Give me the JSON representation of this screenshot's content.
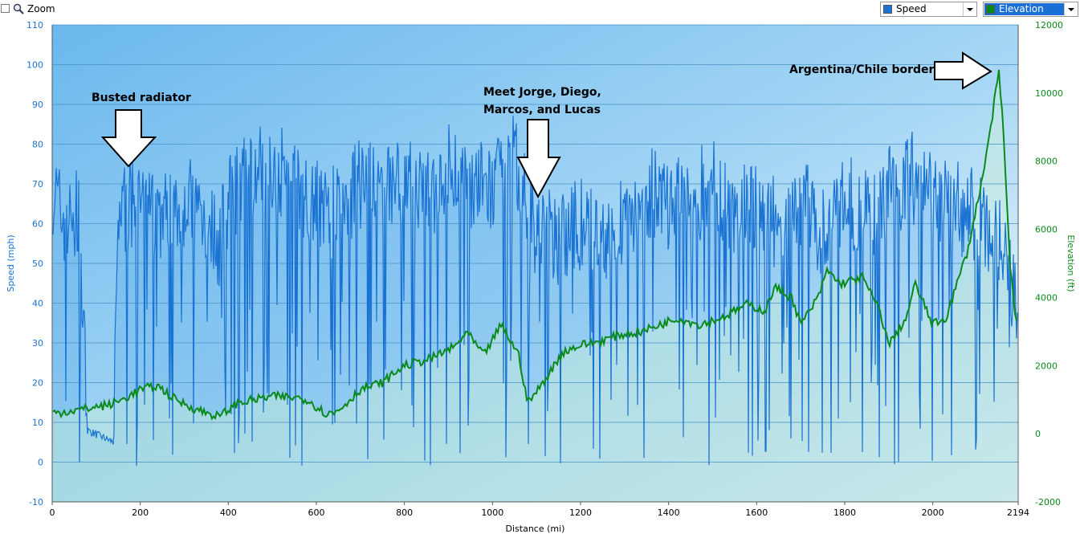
{
  "toolbar": {
    "zoom_label": "Zoom",
    "speed_select": {
      "label": "Speed",
      "color": "#1a72d2"
    },
    "elevation_select": {
      "label": "Elevation",
      "color": "#0a8a1a",
      "highlight": "#1a6fd6"
    }
  },
  "chart_data": {
    "type": "line",
    "xlabel": "Distance  (mi)",
    "x_ticks": [
      "0",
      "200",
      "400",
      "600",
      "800",
      "1000",
      "1200",
      "1400",
      "1600",
      "1800",
      "2000",
      "2194"
    ],
    "x_range": [
      0,
      2194
    ],
    "y_left": {
      "label": "Speed (mph)",
      "range": [
        -10,
        110
      ],
      "ticks": [
        "110",
        "100",
        "90",
        "80",
        "70",
        "60",
        "50",
        "40",
        "30",
        "20",
        "10",
        "0",
        "-10"
      ],
      "color": "#1a72d2"
    },
    "y_right": {
      "label": "Elevation (ft)",
      "range": [
        -2000,
        12000
      ],
      "ticks": [
        "12000",
        "10000",
        "8000",
        "6000",
        "4000",
        "2000",
        "0",
        "-2000"
      ],
      "color": "#0a8a1a"
    },
    "grid": true,
    "series": [
      {
        "name": "Speed",
        "axis": "left",
        "x": [
          0,
          20,
          40,
          60,
          80,
          100,
          140,
          150,
          200,
          250,
          300,
          350,
          380,
          400,
          450,
          500,
          550,
          600,
          650,
          700,
          750,
          800,
          850,
          900,
          950,
          1000,
          1050,
          1100,
          1150,
          1200,
          1250,
          1300,
          1350,
          1400,
          1450,
          1500,
          1550,
          1600,
          1650,
          1700,
          1750,
          1800,
          1850,
          1900,
          1950,
          2000,
          2050,
          2100,
          2150,
          2194
        ],
        "values": [
          70,
          62,
          60,
          62,
          8,
          7,
          5,
          64,
          65,
          62,
          66,
          62,
          55,
          65,
          72,
          75,
          70,
          66,
          62,
          70,
          68,
          72,
          66,
          74,
          70,
          68,
          76,
          58,
          56,
          60,
          56,
          62,
          68,
          64,
          66,
          70,
          63,
          64,
          60,
          66,
          58,
          66,
          62,
          68,
          72,
          67,
          64,
          62,
          56,
          40
        ]
      },
      {
        "name": "Elevation",
        "axis": "right",
        "x": [
          0,
          60,
          130,
          160,
          200,
          240,
          280,
          330,
          380,
          420,
          500,
          560,
          580,
          620,
          640,
          660,
          700,
          750,
          800,
          860,
          920,
          940,
          980,
          1020,
          1060,
          1080,
          1110,
          1160,
          1200,
          1240,
          1290,
          1340,
          1380,
          1420,
          1470,
          1520,
          1580,
          1620,
          1640,
          1680,
          1700,
          1740,
          1760,
          1790,
          1840,
          1880,
          1900,
          1940,
          1960,
          2000,
          2030,
          2080,
          2120,
          2150,
          2160,
          2175,
          2194
        ],
        "values": [
          600,
          700,
          850,
          1000,
          1300,
          1400,
          1000,
          700,
          500,
          900,
          1100,
          1050,
          1000,
          600,
          600,
          800,
          1300,
          1500,
          2000,
          2200,
          2600,
          3000,
          2300,
          3200,
          2300,
          900,
          1400,
          2400,
          2600,
          2700,
          2900,
          3000,
          3200,
          3400,
          3200,
          3400,
          3800,
          3600,
          4300,
          4000,
          3200,
          4000,
          4800,
          4400,
          4600,
          3600,
          2600,
          3400,
          4400,
          3200,
          3400,
          5400,
          8000,
          10600,
          9000,
          5000,
          2800
        ]
      }
    ],
    "annotations": [
      {
        "text": "Busted radiator",
        "x": 180
      },
      {
        "text": "Meet Jorge, Diego,",
        "text2": "Marcos, and Lucas",
        "x": 1100
      },
      {
        "text": "Argentina/Chile border",
        "x": 2150
      }
    ]
  }
}
